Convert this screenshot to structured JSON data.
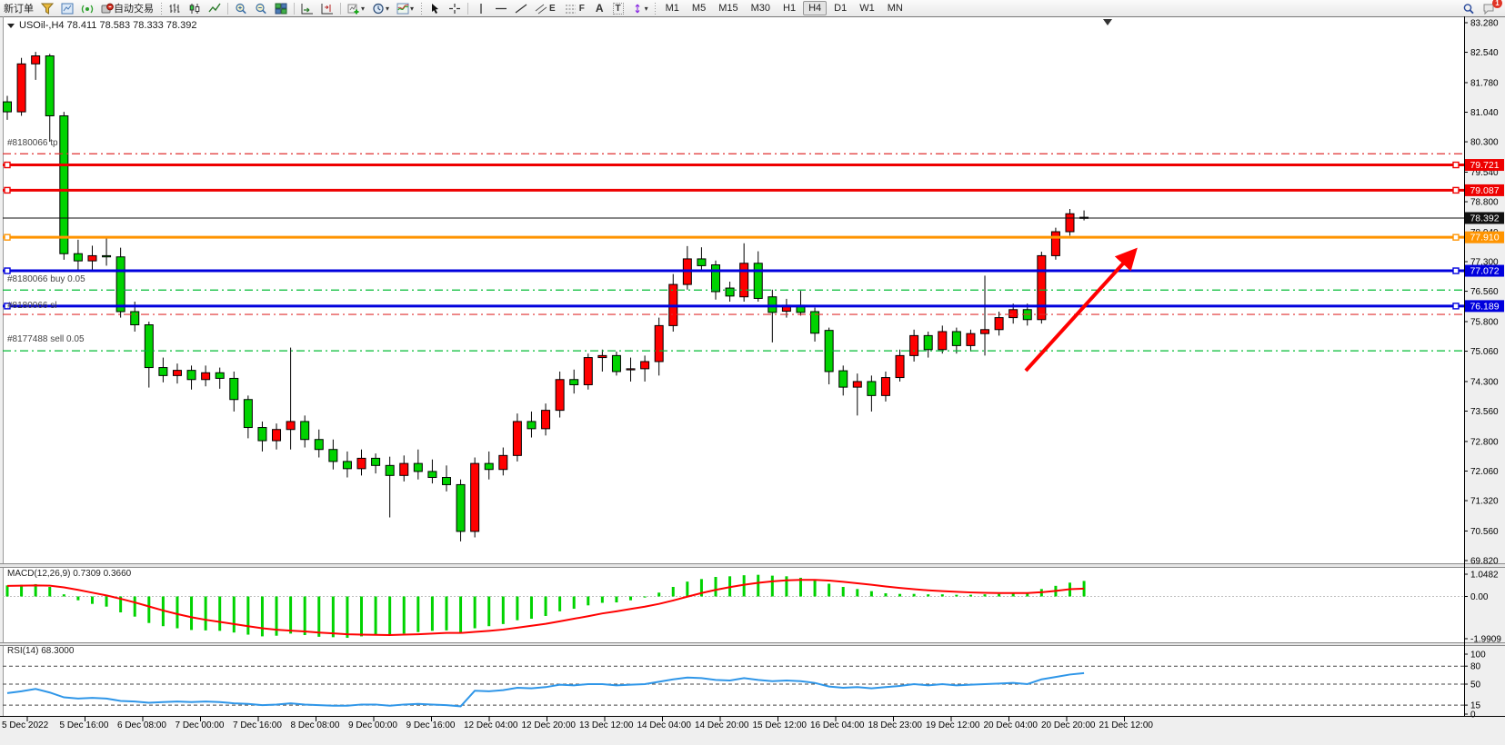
{
  "toolbar": {
    "new_order": "新订单",
    "autotrading": "自动交易",
    "timeframes": [
      "M1",
      "M5",
      "M15",
      "M30",
      "H1",
      "H4",
      "D1",
      "W1",
      "MN"
    ],
    "active_timeframe": "H4",
    "tool_letters": {
      "channel": "E",
      "fibonacci": "F",
      "text": "A",
      "label": "T"
    },
    "notification_count": "1"
  },
  "chart_window": {
    "title": "USOil-,H4  78.411 78.583 78.333 78.392",
    "symbol": "USOil-",
    "timeframe": "H4",
    "open": "78.411",
    "high": "78.583",
    "low": "78.333",
    "close": "78.392"
  },
  "orders": [
    {
      "label": "#8180066 tp",
      "price": 80.0,
      "kind": "tp"
    },
    {
      "label": "#8180066 buy 0.05",
      "price": 76.59,
      "kind": "buy"
    },
    {
      "label": "#8180066 sl",
      "price": 75.98,
      "kind": "sl"
    },
    {
      "label": "#8177488 sell 0.05",
      "price": 75.07,
      "kind": "sell"
    }
  ],
  "price_lines": [
    {
      "label": "79.721",
      "price": 79.721,
      "color": "#ee0000",
      "width": 3,
      "is_current": false
    },
    {
      "label": "79.087",
      "price": 79.087,
      "color": "#ee0000",
      "width": 3,
      "is_current": false
    },
    {
      "label": "78.392",
      "price": 78.392,
      "color": "#111111",
      "width": 1,
      "is_current": true
    },
    {
      "label": "77.910",
      "price": 77.91,
      "color": "#ff9400",
      "width": 3,
      "is_current": false
    },
    {
      "label": "77.072",
      "price": 77.072,
      "color": "#0000dd",
      "width": 3,
      "is_current": false
    },
    {
      "label": "76.189",
      "price": 76.189,
      "color": "#0000dd",
      "width": 3,
      "is_current": false
    }
  ],
  "indicators": {
    "macd_label": "MACD(12,26,9) 0.7309 0.3660",
    "rsi_label": "RSI(14) 68.3000"
  },
  "chart_data": [
    {
      "type": "candlestick",
      "title": "USOil-,H4",
      "up_color": "#ff0000",
      "down_color": "#00d300",
      "ylim": [
        69.82,
        83.28
      ],
      "y_ticks": [
        "83.280",
        "82.540",
        "81.780",
        "81.040",
        "80.300",
        "79.540",
        "78.800",
        "78.040",
        "77.300",
        "76.560",
        "75.800",
        "75.060",
        "74.300",
        "73.560",
        "72.800",
        "72.060",
        "71.320",
        "70.560",
        "69.820"
      ],
      "x_labels": [
        "5 Dec 2022",
        "5 Dec 16:00",
        "6 Dec 08:00",
        "7 Dec 00:00",
        "7 Dec 16:00",
        "8 Dec 08:00",
        "9 Dec 00:00",
        "9 Dec 16:00",
        "12 Dec 04:00",
        "12 Dec 20:00",
        "13 Dec 12:00",
        "14 Dec 04:00",
        "14 Dec 20:00",
        "15 Dec 12:00",
        "16 Dec 04:00",
        "18 Dec 23:00",
        "19 Dec 12:00",
        "20 Dec 04:00",
        "20 Dec 20:00",
        "21 Dec 12:00"
      ],
      "candles_ohlc": [
        [
          81.3,
          81.45,
          80.85,
          81.05
        ],
        [
          81.05,
          82.4,
          80.95,
          82.25
        ],
        [
          82.25,
          82.55,
          81.85,
          82.45
        ],
        [
          82.45,
          82.5,
          80.3,
          80.95
        ],
        [
          80.95,
          81.05,
          77.35,
          77.5
        ],
        [
          77.5,
          77.85,
          77.05,
          77.32
        ],
        [
          77.32,
          77.7,
          77.1,
          77.45
        ],
        [
          77.45,
          77.9,
          77.2,
          77.42
        ],
        [
          77.42,
          77.65,
          75.9,
          76.05
        ],
        [
          76.05,
          76.3,
          75.55,
          75.72
        ],
        [
          75.72,
          75.8,
          74.15,
          74.65
        ],
        [
          74.65,
          74.9,
          74.28,
          74.45
        ],
        [
          74.45,
          74.75,
          74.25,
          74.58
        ],
        [
          74.58,
          74.7,
          74.1,
          74.35
        ],
        [
          74.35,
          74.7,
          74.18,
          74.52
        ],
        [
          74.52,
          74.65,
          74.12,
          74.38
        ],
        [
          74.38,
          74.55,
          73.55,
          73.85
        ],
        [
          73.85,
          73.95,
          72.88,
          73.15
        ],
        [
          73.15,
          73.3,
          72.55,
          72.82
        ],
        [
          72.82,
          73.25,
          72.6,
          73.1
        ],
        [
          73.1,
          75.15,
          72.6,
          73.3
        ],
        [
          73.3,
          73.45,
          72.65,
          72.85
        ],
        [
          72.85,
          73.1,
          72.4,
          72.6
        ],
        [
          72.6,
          72.85,
          72.1,
          72.3
        ],
        [
          72.3,
          72.55,
          71.9,
          72.12
        ],
        [
          72.12,
          72.6,
          71.95,
          72.38
        ],
        [
          72.38,
          72.5,
          72.0,
          72.2
        ],
        [
          72.2,
          72.42,
          70.9,
          71.95
        ],
        [
          71.95,
          72.45,
          71.8,
          72.25
        ],
        [
          72.25,
          72.6,
          71.85,
          72.05
        ],
        [
          72.05,
          72.35,
          71.75,
          71.9
        ],
        [
          71.9,
          72.2,
          71.55,
          71.72
        ],
        [
          71.72,
          71.85,
          70.3,
          70.55
        ],
        [
          70.55,
          72.4,
          70.4,
          72.25
        ],
        [
          72.25,
          72.55,
          71.85,
          72.1
        ],
        [
          72.1,
          72.65,
          71.95,
          72.45
        ],
        [
          72.45,
          73.5,
          72.3,
          73.3
        ],
        [
          73.3,
          73.55,
          72.9,
          73.12
        ],
        [
          73.12,
          73.75,
          72.95,
          73.58
        ],
        [
          73.58,
          74.55,
          73.4,
          74.35
        ],
        [
          74.35,
          74.6,
          74.0,
          74.22
        ],
        [
          74.22,
          75.0,
          74.1,
          74.9
        ],
        [
          74.9,
          75.1,
          74.55,
          74.95
        ],
        [
          74.95,
          75.05,
          74.45,
          74.55
        ],
        [
          74.6,
          74.9,
          74.3,
          74.62
        ],
        [
          74.62,
          74.95,
          74.3,
          74.8
        ],
        [
          74.8,
          75.9,
          74.45,
          75.7
        ],
        [
          75.7,
          76.99,
          75.55,
          76.73
        ],
        [
          76.73,
          77.69,
          76.6,
          77.37
        ],
        [
          77.37,
          77.66,
          77.1,
          77.2
        ],
        [
          77.22,
          77.33,
          76.35,
          76.55
        ],
        [
          76.64,
          76.8,
          76.3,
          76.44
        ],
        [
          76.42,
          77.76,
          76.3,
          77.26
        ],
        [
          77.26,
          77.56,
          76.3,
          76.38
        ],
        [
          76.42,
          76.6,
          75.28,
          76.03
        ],
        [
          76.06,
          76.37,
          75.9,
          76.21
        ],
        [
          76.21,
          76.57,
          75.95,
          76.03
        ],
        [
          76.05,
          76.15,
          75.3,
          75.51
        ],
        [
          75.58,
          75.65,
          74.23,
          74.55
        ],
        [
          74.57,
          74.7,
          73.95,
          74.16
        ],
        [
          74.16,
          74.5,
          73.45,
          74.3
        ],
        [
          74.3,
          74.45,
          73.55,
          73.95
        ],
        [
          73.95,
          74.55,
          73.8,
          74.4
        ],
        [
          74.4,
          75.1,
          74.3,
          74.95
        ],
        [
          74.95,
          75.6,
          74.8,
          75.45
        ],
        [
          75.45,
          75.55,
          74.9,
          75.1
        ],
        [
          75.1,
          75.7,
          75.0,
          75.55
        ],
        [
          75.55,
          75.65,
          75.0,
          75.2
        ],
        [
          75.2,
          75.6,
          75.05,
          75.5
        ],
        [
          75.5,
          76.95,
          74.95,
          75.6
        ],
        [
          75.6,
          76.05,
          75.45,
          75.9
        ],
        [
          75.9,
          76.25,
          75.75,
          76.1
        ],
        [
          76.1,
          76.25,
          75.7,
          75.85
        ],
        [
          75.85,
          77.55,
          75.75,
          77.45
        ],
        [
          77.45,
          78.15,
          77.35,
          78.05
        ],
        [
          78.05,
          78.62,
          77.95,
          78.5
        ],
        [
          78.411,
          78.583,
          78.333,
          78.392
        ]
      ]
    },
    {
      "type": "bar",
      "name": "MACD",
      "params": "12,26,9",
      "value_main": 0.7309,
      "value_signal": 0.366,
      "color": "#00d300",
      "signal_color": "#ff0000",
      "y_ticks": [
        "1.0482",
        "0.00",
        "-1.9909"
      ],
      "y_tick_values": [
        1.0482,
        0.0,
        -1.9909
      ],
      "values": [
        0.52,
        0.55,
        0.58,
        0.45,
        0.1,
        -0.18,
        -0.35,
        -0.48,
        -0.75,
        -0.95,
        -1.25,
        -1.4,
        -1.5,
        -1.58,
        -1.6,
        -1.62,
        -1.7,
        -1.8,
        -1.88,
        -1.85,
        -1.75,
        -1.82,
        -1.9,
        -1.92,
        -1.95,
        -1.88,
        -1.82,
        -1.85,
        -1.75,
        -1.68,
        -1.62,
        -1.6,
        -1.72,
        -1.5,
        -1.4,
        -1.3,
        -1.12,
        -1.05,
        -0.92,
        -0.7,
        -0.58,
        -0.42,
        -0.3,
        -0.28,
        -0.18,
        -0.05,
        0.18,
        0.45,
        0.7,
        0.82,
        0.92,
        0.95,
        1.0,
        1.02,
        0.98,
        0.95,
        0.88,
        0.78,
        0.6,
        0.45,
        0.35,
        0.25,
        0.15,
        0.12,
        0.12,
        0.1,
        0.1,
        0.08,
        0.08,
        0.1,
        0.12,
        0.15,
        0.15,
        0.35,
        0.5,
        0.65,
        0.73
      ],
      "signal": [
        0.5,
        0.51,
        0.52,
        0.51,
        0.43,
        0.31,
        0.18,
        0.05,
        -0.11,
        -0.28,
        -0.47,
        -0.66,
        -0.83,
        -0.98,
        -1.1,
        -1.2,
        -1.3,
        -1.4,
        -1.5,
        -1.57,
        -1.61,
        -1.65,
        -1.7,
        -1.74,
        -1.78,
        -1.8,
        -1.81,
        -1.82,
        -1.8,
        -1.78,
        -1.75,
        -1.72,
        -1.72,
        -1.67,
        -1.62,
        -1.56,
        -1.47,
        -1.38,
        -1.29,
        -1.17,
        -1.05,
        -0.93,
        -0.8,
        -0.7,
        -0.59,
        -0.48,
        -0.35,
        -0.19,
        -0.01,
        0.16,
        0.31,
        0.44,
        0.55,
        0.64,
        0.71,
        0.76,
        0.78,
        0.78,
        0.75,
        0.69,
        0.62,
        0.55,
        0.47,
        0.4,
        0.34,
        0.29,
        0.25,
        0.22,
        0.19,
        0.17,
        0.16,
        0.16,
        0.16,
        0.2,
        0.26,
        0.34,
        0.37
      ]
    },
    {
      "type": "line",
      "name": "RSI",
      "params": "14",
      "value": 68.3,
      "color": "#2f96e8",
      "levels": [
        80,
        50,
        15
      ],
      "y_ticks": [
        "100",
        "80",
        "50",
        "15",
        "0"
      ],
      "y_tick_values": [
        100,
        80,
        50,
        15,
        0
      ],
      "values": [
        35,
        38,
        42,
        36,
        28,
        26,
        27,
        26,
        22,
        21,
        19,
        20,
        21,
        20,
        21,
        20,
        18,
        17,
        15,
        16,
        18,
        16,
        15,
        14,
        14,
        16,
        16,
        14,
        16,
        17,
        16,
        15,
        13,
        39,
        38,
        40,
        44,
        43,
        45,
        49,
        48,
        50,
        50,
        48,
        49,
        50,
        54,
        58,
        61,
        60,
        57,
        56,
        60,
        57,
        55,
        56,
        55,
        52,
        46,
        44,
        45,
        43,
        45,
        47,
        50,
        48,
        50,
        48,
        49,
        50,
        51,
        52,
        50,
        58,
        62,
        66,
        68.3
      ]
    }
  ]
}
